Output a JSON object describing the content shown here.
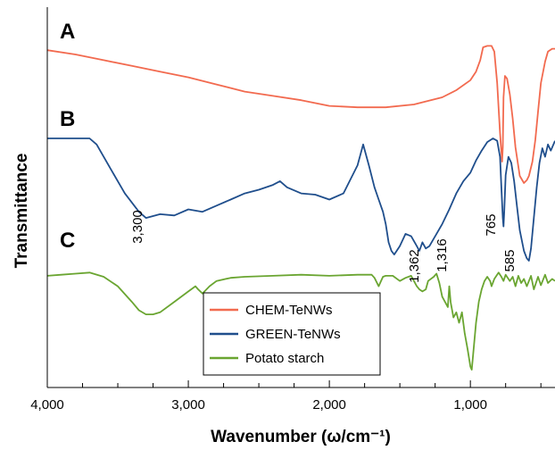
{
  "chart_data": {
    "type": "line",
    "title": "",
    "xlabel": "Wavenumber (ω/cm⁻¹)",
    "ylabel": "Transmittance",
    "xlim": [
      4000,
      400
    ],
    "x_reversed": true,
    "y_ticks_shown": false,
    "grid": false,
    "legend_position": "bottom-center",
    "x_ticks": [
      {
        "value": 4000,
        "label": "4,000"
      },
      {
        "value": 3000,
        "label": "3,000"
      },
      {
        "value": 2000,
        "label": "2,000"
      },
      {
        "value": 1000,
        "label": "1,000"
      }
    ],
    "series": [
      {
        "name": "CHEM-TeNWs",
        "panel": "A",
        "color": "#f26a4f",
        "x": [
          4000,
          3800,
          3600,
          3400,
          3200,
          3000,
          2800,
          2600,
          2400,
          2200,
          2000,
          1800,
          1600,
          1400,
          1200,
          1100,
          1000,
          960,
          930,
          910,
          880,
          850,
          830,
          810,
          790,
          775,
          770,
          765,
          755,
          740,
          720,
          700,
          680,
          650,
          620,
          600,
          585,
          560,
          540,
          520,
          500,
          470,
          450,
          420,
          400
        ],
        "y": [
          0.93,
          0.9,
          0.86,
          0.82,
          0.78,
          0.74,
          0.69,
          0.64,
          0.61,
          0.58,
          0.54,
          0.53,
          0.53,
          0.55,
          0.6,
          0.65,
          0.72,
          0.78,
          0.86,
          0.95,
          0.96,
          0.96,
          0.92,
          0.7,
          0.35,
          0.15,
          0.25,
          0.6,
          0.75,
          0.73,
          0.62,
          0.45,
          0.25,
          0.05,
          0.0,
          0.02,
          0.05,
          0.15,
          0.3,
          0.5,
          0.7,
          0.85,
          0.92,
          0.94,
          0.94
        ]
      },
      {
        "name": "GREEN-TeNWs",
        "panel": "B",
        "color": "#1f4e8c",
        "x": [
          4000,
          3850,
          3700,
          3650,
          3550,
          3450,
          3350,
          3300,
          3200,
          3100,
          3000,
          2900,
          2800,
          2700,
          2600,
          2500,
          2400,
          2350,
          2300,
          2200,
          2100,
          2000,
          1900,
          1800,
          1760,
          1720,
          1680,
          1650,
          1620,
          1600,
          1580,
          1560,
          1540,
          1500,
          1460,
          1420,
          1380,
          1362,
          1340,
          1316,
          1290,
          1250,
          1200,
          1150,
          1100,
          1050,
          1000,
          960,
          920,
          880,
          840,
          810,
          790,
          780,
          770,
          765,
          760,
          750,
          730,
          710,
          690,
          670,
          650,
          620,
          600,
          585,
          570,
          550,
          530,
          510,
          490,
          470,
          450,
          430,
          400
        ],
        "y": [
          1.0,
          1.0,
          1.0,
          0.95,
          0.75,
          0.55,
          0.4,
          0.35,
          0.38,
          0.37,
          0.42,
          0.4,
          0.45,
          0.5,
          0.55,
          0.58,
          0.62,
          0.65,
          0.6,
          0.55,
          0.54,
          0.5,
          0.55,
          0.78,
          0.95,
          0.78,
          0.6,
          0.5,
          0.4,
          0.3,
          0.15,
          0.08,
          0.05,
          0.12,
          0.22,
          0.2,
          0.12,
          0.08,
          0.15,
          0.1,
          0.12,
          0.2,
          0.3,
          0.42,
          0.55,
          0.65,
          0.72,
          0.82,
          0.9,
          0.97,
          1.0,
          0.98,
          0.85,
          0.6,
          0.35,
          0.28,
          0.4,
          0.7,
          0.85,
          0.8,
          0.65,
          0.45,
          0.25,
          0.08,
          0.02,
          0.0,
          0.1,
          0.35,
          0.6,
          0.8,
          0.92,
          0.85,
          0.95,
          0.9,
          0.98
        ]
      },
      {
        "name": "Potato starch",
        "panel": "C",
        "color": "#6aa531",
        "x": [
          4000,
          3900,
          3800,
          3700,
          3600,
          3500,
          3400,
          3350,
          3300,
          3250,
          3200,
          3100,
          3000,
          2950,
          2930,
          2900,
          2850,
          2800,
          2700,
          2600,
          2400,
          2200,
          2000,
          1800,
          1700,
          1680,
          1650,
          1640,
          1620,
          1600,
          1550,
          1500,
          1460,
          1420,
          1400,
          1380,
          1362,
          1340,
          1316,
          1300,
          1260,
          1240,
          1220,
          1200,
          1160,
          1150,
          1140,
          1120,
          1100,
          1080,
          1060,
          1040,
          1020,
          1000,
          990,
          980,
          960,
          940,
          920,
          900,
          880,
          860,
          850,
          830,
          800,
          780,
          765,
          750,
          720,
          700,
          680,
          660,
          640,
          620,
          600,
          585,
          570,
          550,
          520,
          500,
          470,
          450,
          420,
          400
        ],
        "y": [
          0.95,
          0.96,
          0.97,
          0.98,
          0.94,
          0.85,
          0.7,
          0.62,
          0.58,
          0.58,
          0.6,
          0.7,
          0.8,
          0.85,
          0.82,
          0.78,
          0.85,
          0.9,
          0.93,
          0.94,
          0.95,
          0.96,
          0.95,
          0.96,
          0.96,
          0.93,
          0.85,
          0.88,
          0.94,
          0.95,
          0.95,
          0.9,
          0.93,
          0.95,
          0.9,
          0.85,
          0.82,
          0.8,
          0.82,
          0.9,
          0.94,
          0.97,
          0.88,
          0.75,
          0.65,
          0.85,
          0.7,
          0.55,
          0.6,
          0.5,
          0.6,
          0.4,
          0.25,
          0.08,
          0.05,
          0.2,
          0.5,
          0.7,
          0.82,
          0.9,
          0.94,
          0.9,
          0.85,
          0.92,
          0.98,
          0.94,
          0.9,
          0.96,
          0.9,
          0.94,
          0.85,
          0.95,
          0.88,
          0.92,
          0.85,
          0.9,
          0.95,
          0.82,
          0.94,
          0.86,
          0.96,
          0.88,
          0.92,
          0.9
        ]
      }
    ],
    "panel_labels": [
      "A",
      "B",
      "C"
    ],
    "annotations": [
      {
        "text": "3,300",
        "x": 3300
      },
      {
        "text": "1,362",
        "x": 1362
      },
      {
        "text": "1,316",
        "x": 1316
      },
      {
        "text": "765",
        "x": 765
      },
      {
        "text": "585",
        "x": 585
      }
    ]
  }
}
